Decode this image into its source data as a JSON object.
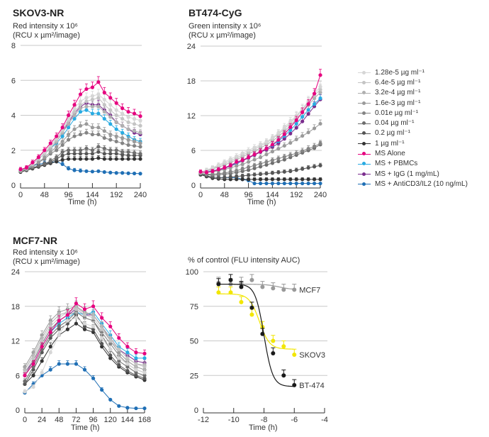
{
  "legend": [
    {
      "label": "1.28e-5 µg ml⁻¹",
      "color": "#d6d6d6"
    },
    {
      "label": "6.4e-5 µg ml⁻¹",
      "color": "#c4c4c4"
    },
    {
      "label": "3.2e-4 µg ml⁻¹",
      "color": "#b0b0b0"
    },
    {
      "label": "1.6e-3 µg ml⁻¹",
      "color": "#9a9a9a"
    },
    {
      "label": "0.01e µg ml⁻¹",
      "color": "#848484"
    },
    {
      "label": "0.04 µg ml⁻¹",
      "color": "#6e6e6e"
    },
    {
      "label": "0.2 µg ml⁻¹",
      "color": "#555555"
    },
    {
      "label": "1 µg ml⁻¹",
      "color": "#333333"
    },
    {
      "label": "MS Alone",
      "color": "#e6007e"
    },
    {
      "label": "MS + PBMCs",
      "color": "#29abe2"
    },
    {
      "label": "MS + IgG (1 mg/mL)",
      "color": "#7b2d8e"
    },
    {
      "label": "MS + AntiCD3/IL2 (10 ng/mL)",
      "color": "#1f6fb5"
    }
  ],
  "chart_data": [
    {
      "type": "line",
      "title": "SKOV3-NR",
      "ylabel": [
        "Red intensity x 10⁶",
        "(RCU x µm²/image)"
      ],
      "xlabel": "Time (h)",
      "xlim": [
        0,
        240
      ],
      "ylim": [
        0,
        8
      ],
      "xticks": [
        0,
        48,
        96,
        144,
        192,
        240
      ],
      "yticks": [
        0,
        2,
        4,
        6,
        8
      ],
      "grid": true,
      "x": [
        0,
        12,
        24,
        36,
        48,
        60,
        72,
        84,
        96,
        108,
        120,
        132,
        144,
        156,
        168,
        180,
        192,
        204,
        216,
        228,
        240
      ],
      "series": [
        {
          "name": "1.28e-5 µg ml⁻¹",
          "values": [
            0.9,
            1.0,
            1.3,
            1.6,
            1.9,
            2.3,
            2.7,
            3.2,
            3.8,
            4.4,
            4.8,
            5.0,
            5.1,
            5.2,
            4.9,
            4.6,
            4.3,
            4.1,
            3.9,
            3.8,
            3.7
          ]
        },
        {
          "name": "6.4e-5 µg ml⁻¹",
          "values": [
            0.9,
            1.0,
            1.2,
            1.5,
            1.8,
            2.2,
            2.6,
            3.1,
            3.7,
            4.2,
            4.6,
            4.8,
            4.9,
            5.0,
            4.6,
            4.3,
            4.0,
            3.8,
            3.6,
            3.5,
            3.4
          ]
        },
        {
          "name": "3.2e-4 µg ml⁻¹",
          "values": [
            0.85,
            0.95,
            1.2,
            1.5,
            1.8,
            2.1,
            2.5,
            3.0,
            3.5,
            4.0,
            4.4,
            4.5,
            4.5,
            4.5,
            4.2,
            3.9,
            3.6,
            3.4,
            3.2,
            3.1,
            3.0
          ]
        },
        {
          "name": "1.6e-3 µg ml⁻¹",
          "values": [
            0.8,
            0.9,
            1.1,
            1.3,
            1.6,
            1.9,
            2.2,
            2.5,
            2.9,
            3.2,
            3.4,
            3.5,
            3.3,
            3.3,
            3.1,
            2.9,
            2.8,
            2.7,
            2.6,
            2.5,
            2.4
          ]
        },
        {
          "name": "0.01e µg ml⁻¹",
          "values": [
            0.8,
            0.9,
            1.1,
            1.3,
            1.5,
            1.8,
            2.0,
            2.3,
            2.6,
            2.8,
            2.9,
            3.0,
            2.9,
            2.9,
            2.7,
            2.6,
            2.5,
            2.4,
            2.3,
            2.25,
            2.2
          ]
        },
        {
          "name": "0.04 µg ml⁻¹",
          "values": [
            0.8,
            0.9,
            1.0,
            1.1,
            1.2,
            1.4,
            1.6,
            1.9,
            2.0,
            2.0,
            2.0,
            2.1,
            2.0,
            2.2,
            2.1,
            2.0,
            2.0,
            1.9,
            1.9,
            1.85,
            1.8
          ]
        },
        {
          "name": "0.2 µg ml⁻¹",
          "values": [
            0.8,
            0.9,
            1.0,
            1.1,
            1.2,
            1.3,
            1.5,
            1.7,
            1.8,
            1.8,
            1.8,
            1.8,
            1.8,
            1.9,
            1.8,
            1.8,
            1.8,
            1.75,
            1.7,
            1.7,
            1.7
          ]
        },
        {
          "name": "1 µg ml⁻¹",
          "values": [
            0.75,
            0.85,
            0.95,
            1.05,
            1.15,
            1.25,
            1.35,
            1.45,
            1.5,
            1.5,
            1.5,
            1.5,
            1.5,
            1.55,
            1.5,
            1.5,
            1.5,
            1.5,
            1.5,
            1.5,
            1.5
          ]
        },
        {
          "name": "MS Alone",
          "values": [
            0.9,
            1.0,
            1.3,
            1.6,
            2.0,
            2.4,
            2.8,
            3.3,
            4.0,
            4.6,
            5.2,
            5.5,
            5.6,
            5.9,
            5.3,
            5.0,
            4.7,
            4.4,
            4.2,
            4.1,
            3.95
          ]
        },
        {
          "name": "MS + PBMCs",
          "values": [
            0.85,
            0.95,
            1.2,
            1.5,
            1.8,
            2.1,
            2.4,
            2.8,
            3.3,
            3.8,
            4.2,
            4.3,
            4.1,
            4.1,
            3.8,
            3.5,
            3.2,
            3.0,
            2.8,
            2.6,
            2.5
          ]
        },
        {
          "name": "MS + IgG (1 mg/mL)",
          "values": [
            0.85,
            0.95,
            1.2,
            1.5,
            1.8,
            2.1,
            2.5,
            3.0,
            3.6,
            4.1,
            4.5,
            4.7,
            4.6,
            4.6,
            4.3,
            4.0,
            3.6,
            3.4,
            3.2,
            3.0,
            2.9
          ]
        },
        {
          "name": "MS + AntiCD3/IL2 (10 ng/mL)",
          "values": [
            0.85,
            0.95,
            1.1,
            1.2,
            1.25,
            1.3,
            1.35,
            1.2,
            0.95,
            0.85,
            0.82,
            0.8,
            0.78,
            0.8,
            0.75,
            0.72,
            0.7,
            0.7,
            0.68,
            0.67,
            0.66
          ]
        }
      ]
    },
    {
      "type": "line",
      "title": "BT474-CyG",
      "ylabel": [
        "Green intensity x 10⁶",
        "(RCU x µm²/image)"
      ],
      "xlabel": "Time (h)",
      "xlim": [
        0,
        240
      ],
      "ylim": [
        0,
        24
      ],
      "xticks": [
        0,
        48,
        96,
        144,
        192,
        240
      ],
      "yticks": [
        0,
        6,
        12,
        18,
        24
      ],
      "grid": true,
      "x": [
        0,
        12,
        24,
        36,
        48,
        60,
        72,
        84,
        96,
        108,
        120,
        132,
        144,
        156,
        168,
        180,
        192,
        204,
        216,
        228,
        240
      ],
      "series": [
        {
          "name": "1.28e-5 µg ml⁻¹",
          "values": [
            2.3,
            2.6,
            3.0,
            3.5,
            4.0,
            4.5,
            5.0,
            5.5,
            6.0,
            6.5,
            7.0,
            7.5,
            8.2,
            9.0,
            10.0,
            11.0,
            12.0,
            13.2,
            14.5,
            15.8,
            17.0
          ]
        },
        {
          "name": "6.4e-5 µg ml⁻¹",
          "values": [
            2.2,
            2.5,
            2.9,
            3.3,
            3.8,
            4.2,
            4.7,
            5.2,
            5.7,
            6.2,
            6.8,
            7.3,
            8.0,
            8.8,
            9.7,
            10.7,
            11.8,
            13.0,
            14.3,
            15.5,
            16.5
          ]
        },
        {
          "name": "3.2e-4 µg ml⁻¹",
          "values": [
            2.2,
            2.4,
            2.8,
            3.1,
            3.5,
            3.9,
            4.4,
            4.9,
            5.4,
            5.9,
            6.4,
            7.0,
            7.6,
            8.4,
            9.3,
            10.3,
            11.4,
            12.5,
            13.8,
            15.0,
            16.0
          ]
        },
        {
          "name": "1.6e-3 µg ml⁻¹",
          "values": [
            2.2,
            2.2,
            2.3,
            2.5,
            2.7,
            3.0,
            3.3,
            3.6,
            4.0,
            4.4,
            4.8,
            5.3,
            5.8,
            6.3,
            6.8,
            7.3,
            7.9,
            8.5,
            9.1,
            9.8,
            10.6
          ]
        },
        {
          "name": "0.01e µg ml⁻¹",
          "values": [
            2.0,
            1.9,
            1.9,
            2.0,
            2.1,
            2.3,
            2.5,
            2.8,
            3.1,
            3.4,
            3.7,
            4.0,
            4.3,
            4.6,
            4.9,
            5.2,
            5.5,
            5.9,
            6.3,
            6.7,
            7.2
          ]
        },
        {
          "name": "0.04 µg ml⁻¹",
          "values": [
            2.0,
            1.8,
            1.7,
            1.8,
            1.9,
            2.0,
            2.2,
            2.4,
            2.6,
            2.9,
            3.2,
            3.5,
            3.8,
            4.1,
            4.4,
            4.8,
            5.2,
            5.6,
            6.0,
            6.4,
            7.0
          ]
        },
        {
          "name": "0.2 µg ml⁻¹",
          "values": [
            2.0,
            1.6,
            1.4,
            1.3,
            1.3,
            1.4,
            1.5,
            1.6,
            1.7,
            1.8,
            1.9,
            2.0,
            2.1,
            2.2,
            2.3,
            2.4,
            2.6,
            2.8,
            3.0,
            3.2,
            3.4
          ]
        },
        {
          "name": "1 µg ml⁻¹",
          "values": [
            1.8,
            1.5,
            1.2,
            1.1,
            1.0,
            1.0,
            1.0,
            1.0,
            1.0,
            1.0,
            1.0,
            1.0,
            1.0,
            1.0,
            1.0,
            1.0,
            1.0,
            1.0,
            1.0,
            1.0,
            1.0
          ]
        },
        {
          "name": "MS Alone",
          "values": [
            2.3,
            2.2,
            2.4,
            2.7,
            3.0,
            3.4,
            4.0,
            4.3,
            4.8,
            5.3,
            5.8,
            6.3,
            7.0,
            7.8,
            8.8,
            10.0,
            11.2,
            12.6,
            14.0,
            15.8,
            19.0
          ]
        },
        {
          "name": "MS + PBMCs",
          "values": [
            2.2,
            2.3,
            2.5,
            2.7,
            3.0,
            3.4,
            3.8,
            4.3,
            4.8,
            5.3,
            5.8,
            6.3,
            6.9,
            7.6,
            8.5,
            9.5,
            10.6,
            11.8,
            13.0,
            14.0,
            15.0
          ]
        },
        {
          "name": "MS + IgG (1 mg/mL)",
          "values": [
            2.2,
            2.3,
            2.4,
            2.6,
            2.9,
            3.3,
            3.7,
            4.2,
            4.7,
            5.2,
            5.7,
            6.1,
            6.6,
            7.2,
            8.0,
            8.9,
            9.9,
            11.0,
            12.3,
            13.6,
            14.8
          ]
        },
        {
          "name": "MS + AntiCD3/IL2 (10 ng/mL)",
          "values": [
            2.0,
            1.6,
            1.4,
            1.3,
            1.3,
            1.3,
            1.3,
            1.0,
            0.8,
            0.3,
            0.3,
            0.3,
            0.3,
            0.3,
            0.3,
            0.3,
            0.3,
            0.3,
            0.3,
            0.3,
            0.3
          ]
        }
      ]
    },
    {
      "type": "line",
      "title": "MCF7-NR",
      "ylabel": [
        "Red intensity x 10⁶",
        "(RCU x µm²/image)"
      ],
      "xlabel": "Time (h)",
      "xlim": [
        0,
        168
      ],
      "ylim": [
        0,
        24
      ],
      "xticks": [
        0,
        24,
        48,
        72,
        96,
        120,
        144,
        168
      ],
      "yticks": [
        0,
        6,
        12,
        18,
        24
      ],
      "grid": true,
      "x": [
        0,
        12,
        24,
        36,
        48,
        60,
        72,
        84,
        96,
        108,
        120,
        132,
        144,
        156,
        168
      ],
      "series": [
        {
          "name": "1.28e-5 µg ml⁻¹",
          "values": [
            3.2,
            4.0,
            6.5,
            10.0,
            13.0,
            15.5,
            16.0,
            15.0,
            14.5,
            12.5,
            10.5,
            9.0,
            8.0,
            7.0,
            6.5
          ]
        },
        {
          "name": "6.4e-5 µg ml⁻¹",
          "values": [
            6.5,
            9.0,
            12.0,
            14.5,
            16.0,
            17.0,
            17.5,
            16.5,
            16.0,
            14.0,
            12.0,
            10.5,
            9.0,
            8.0,
            7.5
          ]
        },
        {
          "name": "3.2e-4 µg ml⁻¹",
          "values": [
            7.0,
            9.5,
            12.5,
            15.0,
            16.5,
            17.0,
            17.8,
            16.8,
            16.5,
            14.5,
            12.5,
            10.5,
            9.0,
            8.0,
            7.8
          ]
        },
        {
          "name": "1.6e-3 µg ml⁻¹",
          "values": [
            7.5,
            10.0,
            13.0,
            15.5,
            17.0,
            17.5,
            18.0,
            17.0,
            16.5,
            14.5,
            12.0,
            10.0,
            8.5,
            7.5,
            7.0
          ]
        },
        {
          "name": "0.01e µg ml⁻¹",
          "values": [
            6.0,
            8.5,
            11.5,
            14.0,
            15.5,
            16.5,
            17.0,
            16.0,
            15.5,
            13.5,
            11.5,
            9.5,
            8.0,
            7.0,
            6.5
          ]
        },
        {
          "name": "0.04 µg ml⁻¹",
          "values": [
            5.0,
            7.5,
            10.5,
            13.0,
            14.5,
            15.5,
            17.0,
            16.0,
            15.5,
            13.0,
            10.5,
            8.5,
            7.5,
            6.5,
            6.0
          ]
        },
        {
          "name": "0.2 µg ml⁻¹",
          "values": [
            4.5,
            7.0,
            10.0,
            12.5,
            14.0,
            15.0,
            16.5,
            14.5,
            14.0,
            11.5,
            9.5,
            7.8,
            6.8,
            6.0,
            5.5
          ]
        },
        {
          "name": "1 µg ml⁻¹",
          "values": [
            4.5,
            6.0,
            8.5,
            11.0,
            13.0,
            14.0,
            15.0,
            14.0,
            13.5,
            11.0,
            9.0,
            7.5,
            6.5,
            5.8,
            5.2
          ]
        },
        {
          "name": "MS Alone",
          "values": [
            6.0,
            8.0,
            11.0,
            13.5,
            15.5,
            16.5,
            18.5,
            17.5,
            18.0,
            16.0,
            14.5,
            12.5,
            11.0,
            10.0,
            9.8
          ]
        },
        {
          "name": "MS + PBMCs",
          "values": [
            6.0,
            8.0,
            11.0,
            13.5,
            15.0,
            16.0,
            17.0,
            16.5,
            17.0,
            15.0,
            13.0,
            11.0,
            10.0,
            9.0,
            9.0
          ]
        },
        {
          "name": "MS + IgG (1 mg/mL)",
          "values": [
            6.5,
            8.5,
            11.5,
            14.0,
            15.5,
            16.5,
            17.5,
            16.5,
            16.5,
            14.5,
            12.5,
            10.5,
            9.5,
            8.5,
            8.2
          ]
        },
        {
          "name": "MS + AntiCD3/IL2 (10 ng/mL)",
          "values": [
            3.0,
            4.5,
            6.0,
            7.0,
            8.0,
            8.0,
            8.0,
            7.0,
            5.5,
            3.5,
            1.8,
            0.7,
            0.4,
            0.3,
            0.3
          ]
        }
      ]
    },
    {
      "type": "scatter",
      "title": "% of control (FLU intensity AUC)",
      "xlabel": "Time (h)",
      "xlim": [
        -12,
        -4
      ],
      "ylim": [
        0,
        100
      ],
      "xticks": [
        -12,
        -10,
        -8,
        -6,
        -4
      ],
      "yticks": [
        0,
        25,
        50,
        75,
        100
      ],
      "grid": true,
      "x": [
        -11,
        -10.2,
        -9.5,
        -8.8,
        -8.1,
        -7.4,
        -6.7,
        -6
      ],
      "series": [
        {
          "name": "MCF7",
          "color": "#999999",
          "values": [
            92,
            91,
            92,
            94,
            89,
            88,
            87,
            87
          ]
        },
        {
          "name": "SKOV3",
          "color": "#f2e600",
          "values": [
            85,
            85,
            78,
            69,
            60,
            50,
            46,
            40
          ]
        },
        {
          "name": "BT-474",
          "color": "#1a1a1a",
          "values": [
            91,
            94,
            89,
            74,
            55,
            41,
            25,
            18
          ]
        }
      ]
    }
  ]
}
